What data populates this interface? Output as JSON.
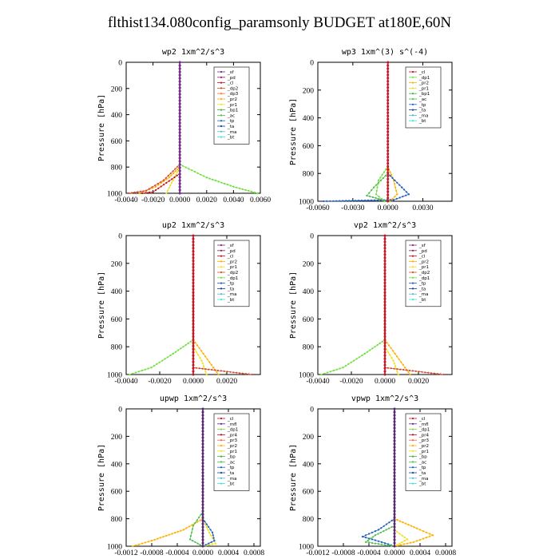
{
  "figure": {
    "title": "flthist134.080config_paramsonly  BUDGET at180E,60N"
  },
  "colors": {
    "_sf": "#7a2a8a",
    "_pd": "#8a1a6a",
    "_cl": "#d01020",
    "_dp2": "#d05030",
    "_dp3": "#ff7030",
    "_pr2": "#ffb000",
    "_pr1": "#f0e020",
    "_pr4": "#c0102a",
    "_pr3": "#e07040",
    "_bp1": "#40b040",
    "_bp": "#40b040",
    "_dp1": "#70e040",
    "_ac": "#50c050",
    "_tp": "#2060c0",
    "_ta": "#1040a0",
    "_ma": "#60b0d0",
    "_bt": "#40e0e0",
    "_mfl": "#602080"
  },
  "chart_data": [
    {
      "type": "line",
      "title": "wp2   1xm^2/s^3",
      "ylabel": "Pressure [hPa]",
      "xlim": [
        -0.004,
        0.006
      ],
      "ylim": [
        1000,
        0
      ],
      "xticks": [
        "-0.0040",
        "-0.0020",
        "0.0000",
        "0.0020",
        "0.0040",
        "0.0060"
      ],
      "yticks": [
        "0",
        "200",
        "400",
        "600",
        "800",
        "1000"
      ],
      "legend": [
        "_sf",
        "_pd",
        "_cl",
        "_dp2",
        "_dp3",
        "_pr2",
        "_pr1",
        "_bp1",
        "_ac",
        "_tp",
        "_ta",
        "_ma",
        "_bt"
      ],
      "legend_pos": "top-right",
      "series": [
        {
          "name": "_dp1",
          "points": [
            [
              0,
              0
            ],
            [
              0,
              780
            ],
            [
              0.002,
              880
            ],
            [
              0.004,
              950
            ],
            [
              0.0058,
              1000
            ]
          ]
        },
        {
          "name": "_pr2",
          "points": [
            [
              0,
              0
            ],
            [
              0,
              800
            ],
            [
              -0.0008,
              880
            ],
            [
              -0.0018,
              950
            ],
            [
              -0.003,
              1000
            ]
          ]
        },
        {
          "name": "_pr1",
          "points": [
            [
              0,
              0
            ],
            [
              0,
              800
            ],
            [
              -0.0005,
              900
            ],
            [
              -0.001,
              1000
            ]
          ]
        },
        {
          "name": "_dp2",
          "points": [
            [
              0,
              0
            ],
            [
              0,
              780
            ],
            [
              -0.0012,
              900
            ],
            [
              -0.0025,
              980
            ],
            [
              -0.0038,
              1000
            ]
          ]
        },
        {
          "name": "_cl",
          "points": [
            [
              0,
              0
            ],
            [
              0,
              850
            ],
            [
              -0.002,
              990
            ],
            [
              -0.0028,
              1000
            ]
          ]
        },
        {
          "name": "_ta",
          "points": [
            [
              0,
              0
            ],
            [
              0,
              1000
            ]
          ]
        },
        {
          "name": "_sf",
          "points": [
            [
              0,
              0
            ],
            [
              0,
              1000
            ]
          ]
        }
      ]
    },
    {
      "type": "line",
      "title": "wp3   1xm^(3) s^(-4)",
      "ylabel": "Pressure [hPa]",
      "xlim": [
        -0.006,
        0.0055
      ],
      "ylim": [
        1000,
        0
      ],
      "xticks": [
        "-0.0060",
        "-0.0030",
        "0.0000",
        "0.0030"
      ],
      "yticks": [
        "0",
        "200",
        "400",
        "600",
        "800",
        "1000"
      ],
      "legend": [
        "_cl",
        "_dp1",
        "_pr2",
        "_pr1",
        "_bp1",
        "_ac",
        "_tp",
        "_ta",
        "_ma",
        "_bt"
      ],
      "legend_pos": "top-right",
      "series": [
        {
          "name": "_dp1",
          "points": [
            [
              0,
              0
            ],
            [
              0,
              750
            ],
            [
              -0.0008,
              850
            ],
            [
              -0.001,
              950
            ],
            [
              -0.0003,
              1000
            ]
          ]
        },
        {
          "name": "_pr2",
          "points": [
            [
              0,
              0
            ],
            [
              0,
              750
            ],
            [
              0.0005,
              850
            ],
            [
              0.0008,
              950
            ],
            [
              0.0002,
              1000
            ]
          ]
        },
        {
          "name": "_tp",
          "points": [
            [
              0,
              0
            ],
            [
              0,
              800
            ],
            [
              0.0012,
              900
            ],
            [
              0.0018,
              950
            ],
            [
              0.0005,
              990
            ],
            [
              -0.0055,
              1000
            ]
          ]
        },
        {
          "name": "_ac",
          "points": [
            [
              0,
              0
            ],
            [
              0,
              800
            ],
            [
              -0.0012,
              900
            ],
            [
              -0.0018,
              960
            ],
            [
              0,
              1000
            ]
          ]
        },
        {
          "name": "_cl",
          "points": [
            [
              0,
              0
            ],
            [
              0,
              1000
            ]
          ]
        }
      ]
    },
    {
      "type": "line",
      "title": "up2   1xm^2/s^3",
      "ylabel": "Pressure [hPa]",
      "xlim": [
        -0.004,
        0.004
      ],
      "ylim": [
        1000,
        0
      ],
      "xticks": [
        "-0.0040",
        "-0.0020",
        "0.0000",
        "0.0020"
      ],
      "yticks": [
        "0",
        "200",
        "400",
        "600",
        "800",
        "1000"
      ],
      "legend": [
        "_sf",
        "_pd",
        "_cl",
        "_pr2",
        "_pr1",
        "_dp2",
        "_dp1",
        "_tp",
        "_ta",
        "_ma",
        "_bt"
      ],
      "legend_pos": "top-right",
      "series": [
        {
          "name": "_dp1",
          "points": [
            [
              0,
              0
            ],
            [
              0,
              750
            ],
            [
              -0.0012,
              850
            ],
            [
              -0.0025,
              950
            ],
            [
              -0.0038,
              1000
            ]
          ]
        },
        {
          "name": "_pr2",
          "points": [
            [
              0,
              0
            ],
            [
              0,
              750
            ],
            [
              0.0006,
              850
            ],
            [
              0.0012,
              950
            ],
            [
              0.0015,
              1000
            ]
          ]
        },
        {
          "name": "_pr1",
          "points": [
            [
              0,
              0
            ],
            [
              0,
              800
            ],
            [
              0.0005,
              900
            ],
            [
              0.0008,
              1000
            ]
          ]
        },
        {
          "name": "_dp2",
          "points": [
            [
              0,
              0
            ],
            [
              0,
              950
            ],
            [
              0.0035,
              1000
            ]
          ]
        },
        {
          "name": "_cl",
          "points": [
            [
              0,
              0
            ],
            [
              0,
              1000
            ]
          ]
        }
      ]
    },
    {
      "type": "line",
      "title": "vp2   1xm^2/s^3",
      "ylabel": "Pressure [hPa]",
      "xlim": [
        -0.004,
        0.004
      ],
      "ylim": [
        1000,
        0
      ],
      "xticks": [
        "-0.0040",
        "-0.0020",
        "0.0000",
        "0.0020"
      ],
      "yticks": [
        "0",
        "200",
        "400",
        "600",
        "800",
        "1000"
      ],
      "legend": [
        "_sf",
        "_pd",
        "_cl",
        "_pr2",
        "_pr1",
        "_dp2",
        "_dp1",
        "_tp",
        "_ta",
        "_ma",
        "_bt"
      ],
      "legend_pos": "top-right",
      "series": [
        {
          "name": "_dp1",
          "points": [
            [
              0,
              0
            ],
            [
              0,
              750
            ],
            [
              -0.0012,
              850
            ],
            [
              -0.0025,
              950
            ],
            [
              -0.0038,
              1000
            ]
          ]
        },
        {
          "name": "_pr2",
          "points": [
            [
              0,
              0
            ],
            [
              0,
              750
            ],
            [
              0.0006,
              850
            ],
            [
              0.0012,
              950
            ],
            [
              0.0015,
              1000
            ]
          ]
        },
        {
          "name": "_pr1",
          "points": [
            [
              0,
              0
            ],
            [
              0,
              800
            ],
            [
              0.0005,
              900
            ],
            [
              0.0008,
              1000
            ]
          ]
        },
        {
          "name": "_dp2",
          "points": [
            [
              0,
              0
            ],
            [
              0,
              950
            ],
            [
              0.0035,
              1000
            ]
          ]
        },
        {
          "name": "_cl",
          "points": [
            [
              0,
              0
            ],
            [
              0,
              1000
            ]
          ]
        }
      ]
    },
    {
      "type": "line",
      "title": "upwp   1xm^2/s^3",
      "ylabel": "Pressure [hPa]",
      "xlim": [
        -0.0012,
        0.0009
      ],
      "ylim": [
        1000,
        0
      ],
      "xticks": [
        "-0.0012",
        "-0.0008",
        "-0.0004",
        "0.0000",
        "0.0004",
        "0.0008"
      ],
      "yticks": [
        "0",
        "200",
        "400",
        "600",
        "800",
        "1000"
      ],
      "legend": [
        "_cl",
        "_mfl",
        "_dp1",
        "_pr4",
        "_pr3",
        "_pr2",
        "_pr1",
        "_bp",
        "_ac",
        "_tp",
        "_ta",
        "_ma",
        "_bt"
      ],
      "legend_pos": "top-right",
      "series": [
        {
          "name": "_pr2",
          "points": [
            [
              0,
              0
            ],
            [
              0,
              800
            ],
            [
              -0.0003,
              880
            ],
            [
              -0.0008,
              960
            ],
            [
              -0.0011,
              1000
            ]
          ]
        },
        {
          "name": "_pr1",
          "points": [
            [
              0,
              0
            ],
            [
              0,
              800
            ],
            [
              0.0001,
              900
            ],
            [
              0.0002,
              980
            ],
            [
              0,
              1000
            ]
          ]
        },
        {
          "name": "_tp",
          "points": [
            [
              0,
              0
            ],
            [
              0,
              800
            ],
            [
              0.00015,
              900
            ],
            [
              0.00018,
              960
            ],
            [
              0,
              1000
            ]
          ]
        },
        {
          "name": "_ac",
          "points": [
            [
              0,
              0
            ],
            [
              0,
              750
            ],
            [
              -0.00015,
              850
            ],
            [
              -0.0002,
              950
            ],
            [
              0,
              1000
            ]
          ]
        },
        {
          "name": "_dp1",
          "points": [
            [
              0,
              0
            ],
            [
              0,
              1000
            ]
          ]
        },
        {
          "name": "_mfl",
          "points": [
            [
              0,
              0
            ],
            [
              0,
              1000
            ]
          ]
        }
      ]
    },
    {
      "type": "line",
      "title": "vpwp   1xm^2/s^3",
      "ylabel": "Pressure [hPa]",
      "xlim": [
        -0.0012,
        0.0009
      ],
      "ylim": [
        1000,
        0
      ],
      "xticks": [
        "-0.0012",
        "-0.0008",
        "-0.0004",
        "0.0000",
        "0.0004",
        "0.0008"
      ],
      "yticks": [
        "0",
        "200",
        "400",
        "600",
        "800",
        "1000"
      ],
      "legend": [
        "_cl",
        "_mfl",
        "_dp1",
        "_pr4",
        "_pr3",
        "_pr2",
        "_pr1",
        "_bp",
        "_ac",
        "_tp",
        "_ta",
        "_ma",
        "_bt"
      ],
      "legend_pos": "top-right",
      "series": [
        {
          "name": "_pr2",
          "points": [
            [
              0,
              0
            ],
            [
              0,
              800
            ],
            [
              0.00035,
              870
            ],
            [
              0.0006,
              920
            ],
            [
              0.0003,
              970
            ],
            [
              0,
              1000
            ]
          ]
        },
        {
          "name": "_tp",
          "points": [
            [
              0,
              0
            ],
            [
              0,
              800
            ],
            [
              -0.00025,
              880
            ],
            [
              -0.0005,
              930
            ],
            [
              -0.0002,
              970
            ],
            [
              0,
              1000
            ]
          ]
        },
        {
          "name": "_ac",
          "points": [
            [
              0,
              0
            ],
            [
              0,
              850
            ],
            [
              -0.0003,
              920
            ],
            [
              -0.00045,
              970
            ],
            [
              0,
              1000
            ]
          ]
        },
        {
          "name": "_pr1",
          "points": [
            [
              0,
              0
            ],
            [
              0,
              880
            ],
            [
              0.0002,
              950
            ],
            [
              0,
              1000
            ]
          ]
        },
        {
          "name": "_dp1",
          "points": [
            [
              0,
              0
            ],
            [
              0,
              1000
            ]
          ]
        },
        {
          "name": "_mfl",
          "points": [
            [
              0,
              0
            ],
            [
              0,
              1000
            ]
          ]
        }
      ]
    }
  ]
}
